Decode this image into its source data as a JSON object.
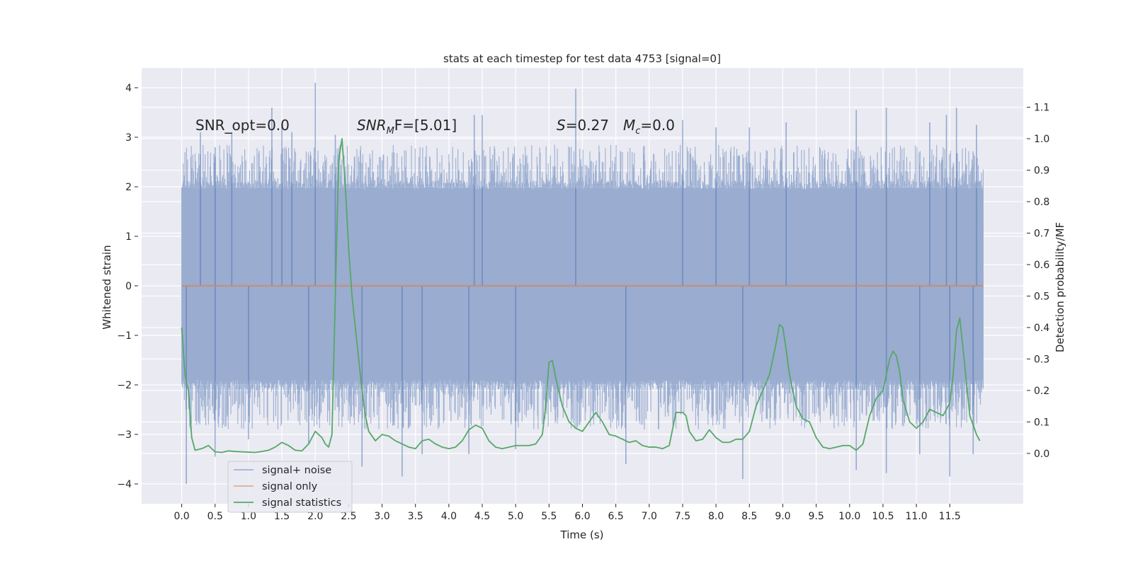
{
  "chart_data": {
    "type": "line",
    "title": "stats at each timestep for test data 4753 [signal=0]",
    "xlabel": "Time (s)",
    "ylabel": "Whitened strain",
    "y2label": "Detection probability/MF",
    "xlim": [
      -0.6,
      12.6
    ],
    "ylim": [
      -4.4,
      4.4
    ],
    "y2lim": [
      -0.16,
      1.225
    ],
    "xticks": [
      0.0,
      0.5,
      1.0,
      1.5,
      2.0,
      2.5,
      3.0,
      3.5,
      4.0,
      4.5,
      5.0,
      5.5,
      6.0,
      6.5,
      7.0,
      7.5,
      8.0,
      8.5,
      9.0,
      9.5,
      10.0,
      10.5,
      11.0,
      11.5
    ],
    "xtick_labels": [
      "0.0",
      "0.5",
      "1.0",
      "1.5",
      "2.0",
      "2.5",
      "3.0",
      "3.5",
      "4.0",
      "4.5",
      "5.0",
      "5.5",
      "6.0",
      "6.5",
      "7.0",
      "7.5",
      "8.0",
      "8.5",
      "9.0",
      "9.5",
      "10.0",
      "10.5",
      "11.0",
      "11.5"
    ],
    "yticks": [
      -4,
      -3,
      -2,
      -1,
      0,
      1,
      2,
      3,
      4
    ],
    "ytick_labels": [
      "−4",
      "−3",
      "−2",
      "−1",
      "0",
      "1",
      "2",
      "3",
      "4"
    ],
    "y2ticks": [
      0.0,
      0.1,
      0.2,
      0.3,
      0.4,
      0.5,
      0.6,
      0.7,
      0.8,
      0.9,
      1.0,
      1.1
    ],
    "y2tick_labels": [
      "0.0",
      "0.1",
      "0.2",
      "0.3",
      "0.4",
      "0.5",
      "0.6",
      "0.7",
      "0.8",
      "0.9",
      "1.0",
      "1.1"
    ],
    "grid": true,
    "legend_position": "lower-left",
    "annotations": [
      {
        "text": "SNR_opt=0.0"
      },
      {
        "prefix": "SNR",
        "sub": "M",
        "suffix": "F=[5.01]"
      },
      {
        "prefix": "S",
        "suffix": "=0.27"
      },
      {
        "prefix": "M",
        "sub": "c",
        "suffix": "=0.0"
      }
    ],
    "series": [
      {
        "name": "signal+ noise",
        "color": "#4c72b0",
        "axis": "left",
        "kind": "noise",
        "x_range": [
          0.0,
          12.0
        ],
        "core_band": [
          -1.9,
          1.95
        ],
        "peaks_high": [
          [
            0.28,
            3.1
          ],
          [
            0.5,
            2.8
          ],
          [
            0.75,
            3.1
          ],
          [
            1.35,
            3.6
          ],
          [
            1.5,
            3.25
          ],
          [
            1.65,
            3.1
          ],
          [
            2.0,
            4.1
          ],
          [
            2.3,
            3.05
          ],
          [
            4.38,
            3.45
          ],
          [
            4.5,
            3.45
          ],
          [
            5.9,
            3.98
          ],
          [
            7.5,
            3.35
          ],
          [
            8.0,
            3.2
          ],
          [
            8.5,
            3.2
          ],
          [
            9.05,
            3.3
          ],
          [
            10.1,
            3.55
          ],
          [
            10.55,
            3.6
          ],
          [
            11.2,
            3.3
          ],
          [
            11.45,
            3.45
          ],
          [
            11.6,
            3.6
          ],
          [
            11.9,
            3.25
          ]
        ],
        "peaks_low": [
          [
            0.07,
            -4.0
          ],
          [
            0.5,
            -3.45
          ],
          [
            1.0,
            -3.1
          ],
          [
            1.9,
            -3.2
          ],
          [
            2.7,
            -3.65
          ],
          [
            3.3,
            -3.85
          ],
          [
            3.6,
            -3.4
          ],
          [
            4.3,
            -3.4
          ],
          [
            5.0,
            -3.3
          ],
          [
            6.65,
            -3.6
          ],
          [
            8.4,
            -3.9
          ],
          [
            10.1,
            -3.72
          ],
          [
            10.55,
            -3.78
          ],
          [
            11.05,
            -3.4
          ],
          [
            11.5,
            -3.85
          ],
          [
            11.85,
            -3.4
          ]
        ]
      },
      {
        "name": "signal only",
        "color": "#dd8452",
        "axis": "left",
        "x": [
          0.0,
          12.0
        ],
        "y": [
          0.0,
          0.0
        ]
      },
      {
        "name": "signal statistics",
        "color": "#55a868",
        "axis": "right",
        "x": [
          0.0,
          0.05,
          0.1,
          0.15,
          0.2,
          0.3,
          0.4,
          0.5,
          0.6,
          0.7,
          0.8,
          0.9,
          1.0,
          1.1,
          1.2,
          1.3,
          1.4,
          1.5,
          1.6,
          1.7,
          1.8,
          1.9,
          2.0,
          2.1,
          2.15,
          2.2,
          2.25,
          2.3,
          2.35,
          2.4,
          2.45,
          2.5,
          2.55,
          2.6,
          2.65,
          2.7,
          2.75,
          2.8,
          2.9,
          3.0,
          3.1,
          3.2,
          3.3,
          3.4,
          3.5,
          3.6,
          3.7,
          3.8,
          3.9,
          4.0,
          4.1,
          4.2,
          4.3,
          4.4,
          4.5,
          4.6,
          4.7,
          4.8,
          4.9,
          5.0,
          5.2,
          5.3,
          5.4,
          5.45,
          5.5,
          5.55,
          5.6,
          5.7,
          5.8,
          5.9,
          6.0,
          6.1,
          6.2,
          6.3,
          6.4,
          6.5,
          6.6,
          6.7,
          6.8,
          6.9,
          7.0,
          7.1,
          7.2,
          7.3,
          7.4,
          7.5,
          7.55,
          7.6,
          7.7,
          7.8,
          7.9,
          8.0,
          8.1,
          8.2,
          8.3,
          8.4,
          8.5,
          8.6,
          8.7,
          8.8,
          8.9,
          8.95,
          9.0,
          9.05,
          9.1,
          9.2,
          9.3,
          9.4,
          9.5,
          9.6,
          9.7,
          9.8,
          9.9,
          10.0,
          10.1,
          10.2,
          10.3,
          10.4,
          10.5,
          10.6,
          10.65,
          10.7,
          10.75,
          10.8,
          10.9,
          11.0,
          11.1,
          11.2,
          11.3,
          11.4,
          11.5,
          11.55,
          11.6,
          11.65,
          11.7,
          11.8,
          11.9,
          11.95
        ],
        "y": [
          0.4,
          0.25,
          0.2,
          0.05,
          0.01,
          0.015,
          0.025,
          0.005,
          0.003,
          0.008,
          0.006,
          0.005,
          0.004,
          0.003,
          0.006,
          0.01,
          0.02,
          0.035,
          0.025,
          0.01,
          0.008,
          0.03,
          0.07,
          0.05,
          0.03,
          0.02,
          0.06,
          0.5,
          0.93,
          1.0,
          0.85,
          0.65,
          0.5,
          0.4,
          0.3,
          0.2,
          0.12,
          0.07,
          0.04,
          0.06,
          0.055,
          0.04,
          0.03,
          0.02,
          0.015,
          0.04,
          0.045,
          0.03,
          0.02,
          0.015,
          0.02,
          0.04,
          0.075,
          0.09,
          0.08,
          0.04,
          0.02,
          0.015,
          0.02,
          0.025,
          0.025,
          0.03,
          0.06,
          0.15,
          0.29,
          0.295,
          0.24,
          0.15,
          0.1,
          0.08,
          0.07,
          0.1,
          0.13,
          0.1,
          0.06,
          0.055,
          0.045,
          0.035,
          0.04,
          0.025,
          0.02,
          0.02,
          0.015,
          0.025,
          0.13,
          0.13,
          0.12,
          0.07,
          0.04,
          0.045,
          0.075,
          0.05,
          0.035,
          0.035,
          0.045,
          0.045,
          0.07,
          0.15,
          0.2,
          0.25,
          0.35,
          0.41,
          0.4,
          0.33,
          0.25,
          0.15,
          0.11,
          0.1,
          0.05,
          0.02,
          0.015,
          0.02,
          0.025,
          0.025,
          0.01,
          0.03,
          0.12,
          0.175,
          0.2,
          0.3,
          0.325,
          0.31,
          0.26,
          0.17,
          0.1,
          0.08,
          0.1,
          0.14,
          0.13,
          0.12,
          0.16,
          0.25,
          0.39,
          0.43,
          0.33,
          0.12,
          0.06,
          0.04
        ]
      }
    ]
  }
}
